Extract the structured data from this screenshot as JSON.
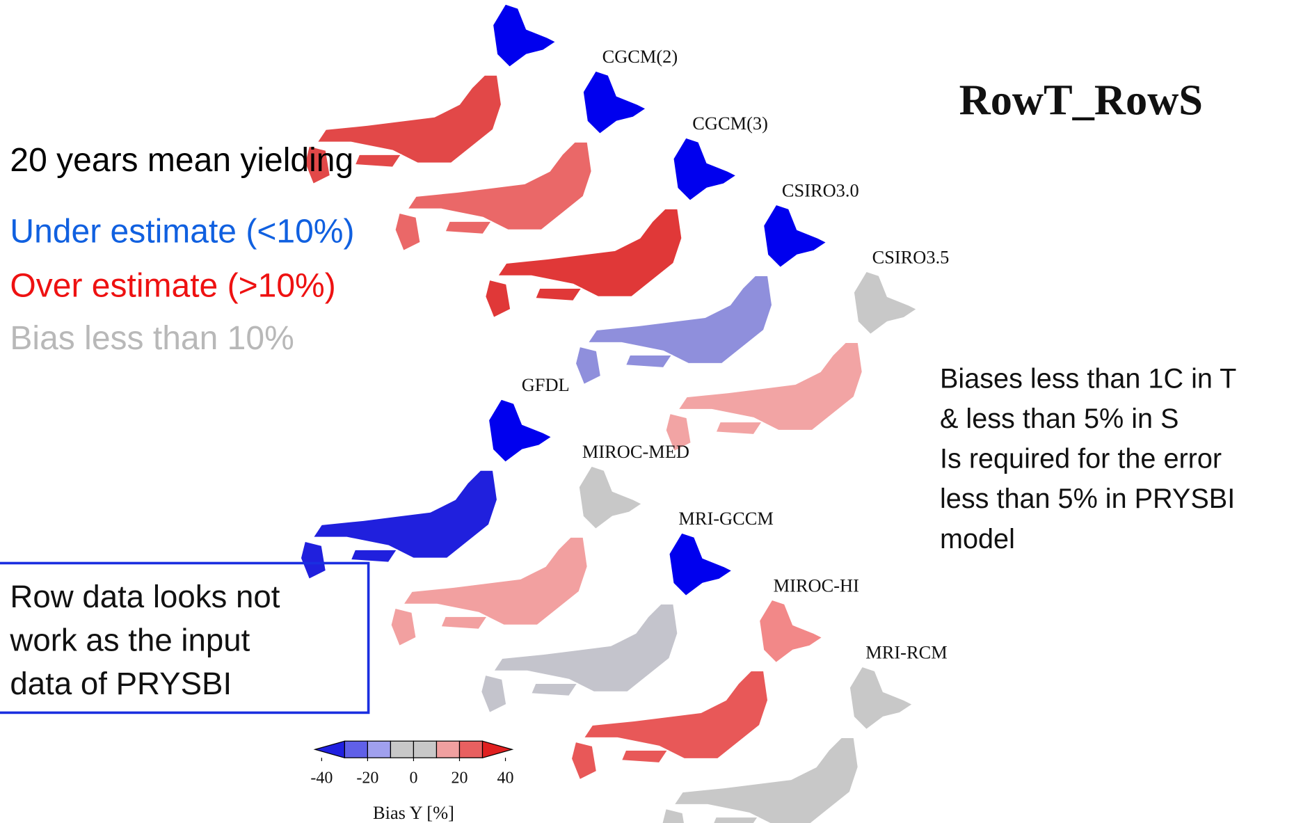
{
  "title": "RowT_RowS",
  "legend_text": {
    "heading": "20 years mean yielding",
    "under": "Under estimate (<10%)",
    "over": "Over estimate (>10%)",
    "neutral": "Bias less than 10%"
  },
  "note": [
    "Biases less than 1C in T",
    "& less than 5% in S",
    "Is required for the error",
    "less than 5% in PRYSBI",
    "model"
  ],
  "box": [
    "Row data looks not",
    "work as the input",
    "data of PRYSBI"
  ],
  "maps": [
    {
      "label": null,
      "hokkaido_color": "#0000ee",
      "mainland_color": "#e24848"
    },
    {
      "label": "CGCM(2)",
      "hokkaido_color": "#0000ee",
      "mainland_color": "#ea6868"
    },
    {
      "label": "CGCM(3)",
      "hokkaido_color": "#0000ee",
      "mainland_color": "#e03838"
    },
    {
      "label": "CSIRO3.0",
      "hokkaido_color": "#0000ee",
      "mainland_color": "#8f8fdc"
    },
    {
      "label": "CSIRO3.5",
      "hokkaido_color": "#c8c8c8",
      "mainland_color": "#f2a4a4"
    },
    {
      "label": "GFDL",
      "hokkaido_color": "#0000ee",
      "mainland_color": "#2020dd"
    },
    {
      "label": "MIROC-MED",
      "hokkaido_color": "#c8c8c8",
      "mainland_color": "#f2a0a0"
    },
    {
      "label": "MRI-GCCM",
      "hokkaido_color": "#0000ee",
      "mainland_color": "#c4c4cc"
    },
    {
      "label": "MIROC-HI",
      "hokkaido_color": "#f28888",
      "mainland_color": "#e85858"
    },
    {
      "label": "MRI-RCM",
      "hokkaido_color": "#c8c8c8",
      "mainland_color": "#c8c8c8"
    }
  ],
  "colorbar": {
    "label": "Bias Y [%]",
    "range": [
      -40,
      40
    ],
    "ticks": [
      -40,
      -20,
      0,
      20,
      40
    ],
    "colors": [
      "#2020e0",
      "#6060e8",
      "#a0a0ee",
      "#c8c8c8",
      "#c8c8c8",
      "#f0a0a0",
      "#e86060",
      "#e02020"
    ]
  }
}
